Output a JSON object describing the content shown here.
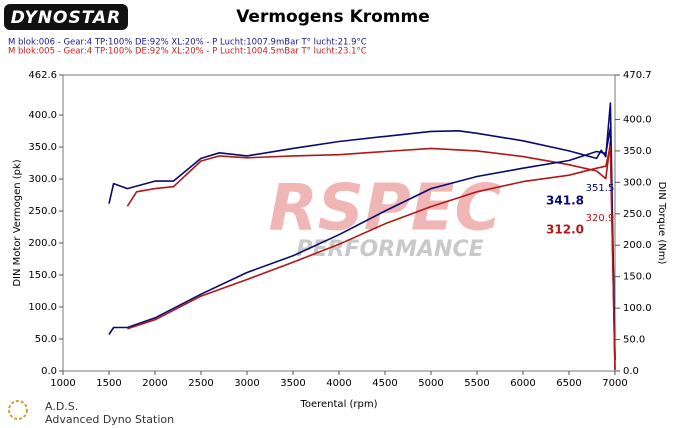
{
  "chart_data": {
    "type": "line",
    "logo": "DYNOSTAR",
    "title": "Vermogens Kromme",
    "info_lines": [
      {
        "text": "M blok:006 - Gear:4 TP:100% DE:92% XL:20%     - P Lucht:1007.9mBar T° lucht:21.9°C",
        "color": "#1a1a8c"
      },
      {
        "text": "M blok:005 - Gear:4 TP:100% DE:92% XL:20%     - P Lucht:1004.5mBar T° lucht:23.1°C",
        "color": "#cc1f1f"
      }
    ],
    "x_label": "Toerental (rpm)",
    "y_label": "DIN Motor Vermogen (pk)",
    "y2_label": "DIN Torque (Nm)",
    "xlim": [
      1000,
      7000
    ],
    "xticks": [
      1000,
      1500,
      2000,
      2500,
      3000,
      3500,
      4000,
      4500,
      5000,
      5500,
      6000,
      6500,
      7000
    ],
    "ylim": [
      0,
      462.6
    ],
    "yticks": [
      {
        "value": 0,
        "label": "0.0"
      },
      {
        "value": 50,
        "label": "50.0"
      },
      {
        "value": 100,
        "label": "100.0"
      },
      {
        "value": 150,
        "label": "150.0"
      },
      {
        "value": 200,
        "label": "200.0"
      },
      {
        "value": 250,
        "label": "250.0"
      },
      {
        "value": 300,
        "label": "300.0"
      },
      {
        "value": 350,
        "label": "350.0"
      },
      {
        "value": 400,
        "label": "400.0"
      },
      462.6
    ],
    "y2lim": [
      0,
      470.7
    ],
    "y2ticks": [
      {
        "value": 0,
        "label": "0.0"
      },
      {
        "value": 50,
        "label": "50.0"
      },
      {
        "value": 100,
        "label": "100.0"
      },
      {
        "value": 150,
        "label": "150.0"
      },
      {
        "value": 200,
        "label": "200.0"
      },
      {
        "value": 250,
        "label": "250.0"
      },
      {
        "value": 300,
        "label": "300.0"
      },
      {
        "value": 350,
        "label": "350.0"
      },
      {
        "value": 400,
        "label": "400.0"
      },
      470.7
    ],
    "series": [
      {
        "color": "#0a0a6e",
        "axis": "y2",
        "x": [
          1500,
          1550,
          1700,
          2000,
          2200,
          2500,
          2700,
          3000,
          3500,
          4000,
          4500,
          5000,
          5300,
          5500,
          6000,
          6500,
          6800,
          6850,
          6900,
          6950,
          7000
        ],
        "values": [
          266,
          298,
          290,
          302,
          302,
          338,
          347,
          342,
          354,
          365,
          373,
          381,
          382,
          378,
          366,
          350,
          338,
          351,
          341,
          426,
          18
        ]
      },
      {
        "color": "#b01818",
        "axis": "y2",
        "x": [
          1700,
          1800,
          2000,
          2200,
          2500,
          2700,
          3000,
          3500,
          4000,
          4500,
          5000,
          5500,
          6000,
          6500,
          6800,
          6900,
          6950,
          7000
        ],
        "values": [
          262,
          285,
          290,
          293,
          334,
          342,
          339,
          342,
          344,
          349,
          354,
          350,
          341,
          328,
          318,
          306,
          365,
          2
        ]
      },
      {
        "color": "#0a0a6e",
        "x": [
          1500,
          1550,
          1700,
          2000,
          2500,
          3000,
          3500,
          4000,
          4500,
          5000,
          5500,
          6000,
          6500,
          6800,
          6900,
          6950,
          7000
        ],
        "values": [
          57,
          68,
          68,
          83,
          120,
          154,
          180,
          213,
          250,
          285,
          304,
          317,
          329,
          343,
          340,
          380,
          17
        ]
      },
      {
        "color": "#b01818",
        "x": [
          1700,
          2000,
          2500,
          3000,
          3500,
          4000,
          4500,
          5000,
          5500,
          6000,
          6500,
          6800,
          6900,
          6950,
          7000
        ],
        "values": [
          66,
          80,
          117,
          143,
          170,
          198,
          230,
          257,
          280,
          296,
          306,
          317,
          320,
          351,
          2
        ]
      }
    ],
    "annotations": [
      {
        "text": "341.8",
        "color": "#0a0a6e"
      },
      {
        "text": "312.0",
        "color": "#b01818"
      },
      {
        "text": "351.5",
        "color": "#0a0a6e"
      },
      {
        "text": "320.9",
        "color": "#b01818"
      }
    ],
    "watermark": [
      "RSPEC",
      "PERFORMANCE"
    ],
    "footer": [
      "A.D.S.",
      "Advanced Dyno Station"
    ]
  }
}
